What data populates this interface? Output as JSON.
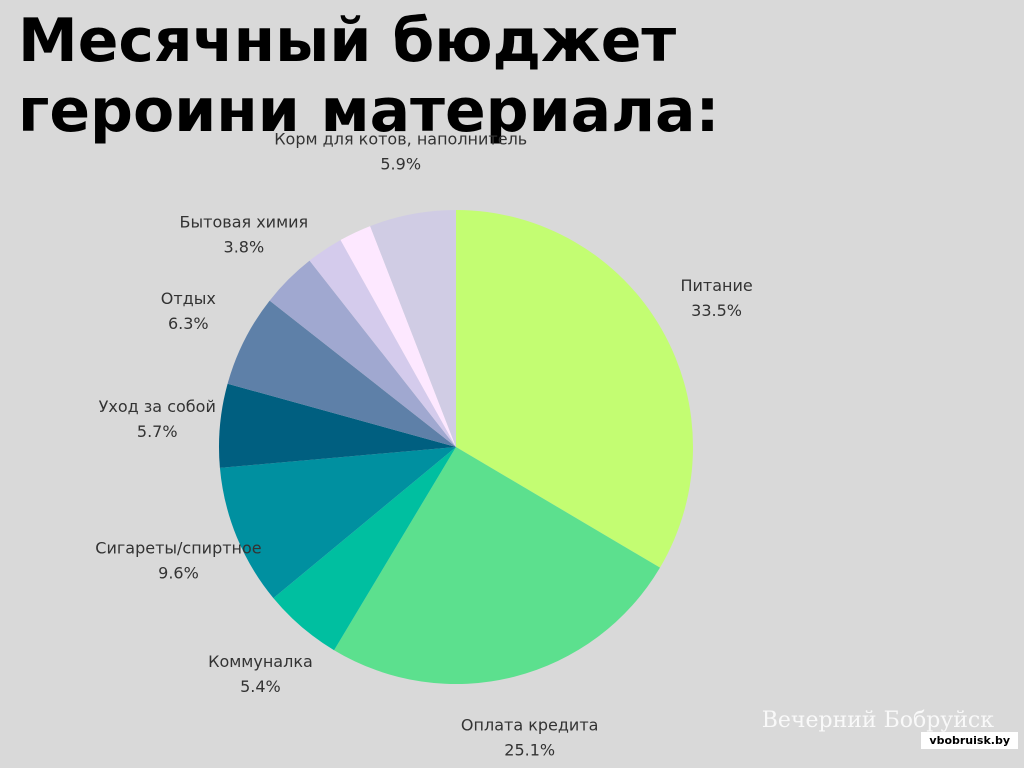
{
  "chart_data": {
    "type": "pie",
    "title": "Месячный бюджет героини материала:",
    "categories": [
      "Питание",
      "Оплата кредита",
      "Коммуналка",
      "Сигареты/спиртное",
      "Уход за собой",
      "Отдых",
      "Бытовая химия",
      null,
      null,
      "Корм для котов, наполнитель"
    ],
    "values": [
      33.5,
      25.1,
      5.4,
      9.6,
      5.7,
      6.3,
      3.8,
      2.5,
      2.2,
      5.9
    ],
    "value_labels": [
      "33.5%",
      "25.1%",
      "5.4%",
      "9.6%",
      "5.7%",
      "6.3%",
      "3.8%",
      null,
      null,
      "5.9%"
    ],
    "colors": [
      "#c3fd72",
      "#5ce08e",
      "#00bfa0",
      "#0090a0",
      "#005f80",
      "#5e80a8",
      "#a0a8d0",
      "#d4cbec",
      "#fde8ff",
      "#d0cce4"
    ]
  },
  "watermark": {
    "name": "Вечерний Бобруйск",
    "site": "vbobruisk.by"
  }
}
